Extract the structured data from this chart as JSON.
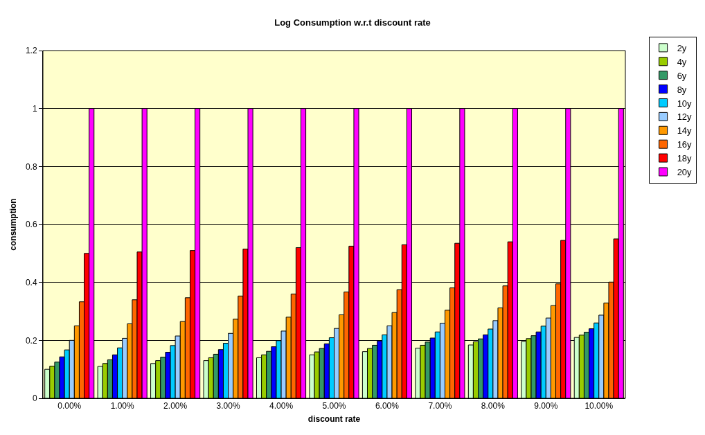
{
  "chart_data": {
    "type": "bar",
    "title": "Log Consumption w.r.t discount rate",
    "xlabel": "discount rate",
    "ylabel": "consumption",
    "categories": [
      "0.00%",
      "1.00%",
      "2.00%",
      "3.00%",
      "4.00%",
      "5.00%",
      "6.00%",
      "7.00%",
      "8.00%",
      "9.00%",
      "10.00%"
    ],
    "series": [
      {
        "name": "2y",
        "color": "#ccffcc",
        "values": [
          0.1,
          0.11,
          0.12,
          0.13,
          0.14,
          0.15,
          0.161,
          0.173,
          0.184,
          0.196,
          0.21
        ]
      },
      {
        "name": "4y",
        "color": "#99cc00",
        "values": [
          0.111,
          0.12,
          0.13,
          0.14,
          0.15,
          0.16,
          0.172,
          0.183,
          0.195,
          0.206,
          0.218
        ]
      },
      {
        "name": "6y",
        "color": "#339966",
        "values": [
          0.125,
          0.133,
          0.142,
          0.152,
          0.162,
          0.172,
          0.183,
          0.194,
          0.205,
          0.216,
          0.228
        ]
      },
      {
        "name": "8y",
        "color": "#0000ff",
        "values": [
          0.143,
          0.15,
          0.159,
          0.168,
          0.178,
          0.188,
          0.198,
          0.208,
          0.219,
          0.229,
          0.24
        ]
      },
      {
        "name": "10y",
        "color": "#00ccff",
        "values": [
          0.167,
          0.174,
          0.182,
          0.19,
          0.199,
          0.209,
          0.219,
          0.229,
          0.239,
          0.249,
          0.26
        ]
      },
      {
        "name": "12y",
        "color": "#99ccff",
        "values": [
          0.2,
          0.207,
          0.215,
          0.224,
          0.232,
          0.241,
          0.25,
          0.259,
          0.268,
          0.277,
          0.287
        ]
      },
      {
        "name": "14y",
        "color": "#ff9900",
        "values": [
          0.25,
          0.257,
          0.265,
          0.273,
          0.28,
          0.288,
          0.296,
          0.304,
          0.312,
          0.32,
          0.329
        ]
      },
      {
        "name": "16y",
        "color": "#ff6600",
        "values": [
          0.333,
          0.34,
          0.347,
          0.353,
          0.36,
          0.367,
          0.375,
          0.381,
          0.388,
          0.395,
          0.401
        ]
      },
      {
        "name": "18y",
        "color": "#ff0000",
        "values": [
          0.5,
          0.505,
          0.51,
          0.515,
          0.52,
          0.525,
          0.53,
          0.535,
          0.54,
          0.545,
          0.55
        ]
      },
      {
        "name": "20y",
        "color": "#ff00ff",
        "values": [
          1,
          1,
          1,
          1,
          1,
          1,
          1,
          1,
          1,
          1,
          1
        ]
      }
    ],
    "ylim": [
      0,
      1.2
    ],
    "yticks": [
      0,
      {
        "value": 0.2,
        "label": "0.2"
      },
      {
        "value": 0.4,
        "label": "0.4"
      },
      {
        "value": 0.6,
        "label": "0.6"
      },
      {
        "value": 0.8,
        "label": "0.8"
      },
      1,
      {
        "value": 1.2,
        "label": "1.2"
      }
    ],
    "grid": "y",
    "legend": "right"
  }
}
